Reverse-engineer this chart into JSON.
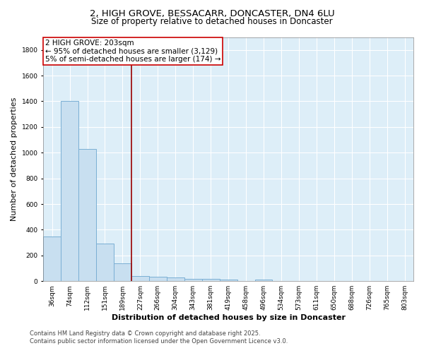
{
  "title_line1": "2, HIGH GROVE, BESSACARR, DONCASTER, DN4 6LU",
  "title_line2": "Size of property relative to detached houses in Doncaster",
  "xlabel": "Distribution of detached houses by size in Doncaster",
  "ylabel": "Number of detached properties",
  "footer_line1": "Contains HM Land Registry data © Crown copyright and database right 2025.",
  "footer_line2": "Contains public sector information licensed under the Open Government Licence v3.0.",
  "annotation_line1": "2 HIGH GROVE: 203sqm",
  "annotation_line2": "← 95% of detached houses are smaller (3,129)",
  "annotation_line3": "5% of semi-detached houses are larger (174) →",
  "categories": [
    "36sqm",
    "74sqm",
    "112sqm",
    "151sqm",
    "189sqm",
    "227sqm",
    "266sqm",
    "304sqm",
    "343sqm",
    "381sqm",
    "419sqm",
    "458sqm",
    "496sqm",
    "534sqm",
    "573sqm",
    "611sqm",
    "650sqm",
    "688sqm",
    "726sqm",
    "765sqm",
    "803sqm"
  ],
  "values": [
    350,
    1400,
    1030,
    290,
    140,
    40,
    35,
    30,
    20,
    15,
    10,
    0,
    10,
    0,
    0,
    0,
    0,
    0,
    0,
    0,
    0
  ],
  "bar_color": "#c8dff0",
  "bar_edgecolor": "#7aafd4",
  "red_line_x": 4.5,
  "red_line_color": "#990000",
  "annotation_box_facecolor": "#ffffff",
  "annotation_box_edgecolor": "#cc0000",
  "ylim": [
    0,
    1900
  ],
  "yticks": [
    0,
    200,
    400,
    600,
    800,
    1000,
    1200,
    1400,
    1600,
    1800
  ],
  "plot_bg_color": "#ddeef8",
  "fig_bg_color": "#ffffff",
  "grid_color": "#ffffff",
  "title_fontsize": 9.5,
  "subtitle_fontsize": 8.5,
  "axis_label_fontsize": 8,
  "tick_fontsize": 6.5,
  "footer_fontsize": 6,
  "annotation_fontsize": 7.5
}
